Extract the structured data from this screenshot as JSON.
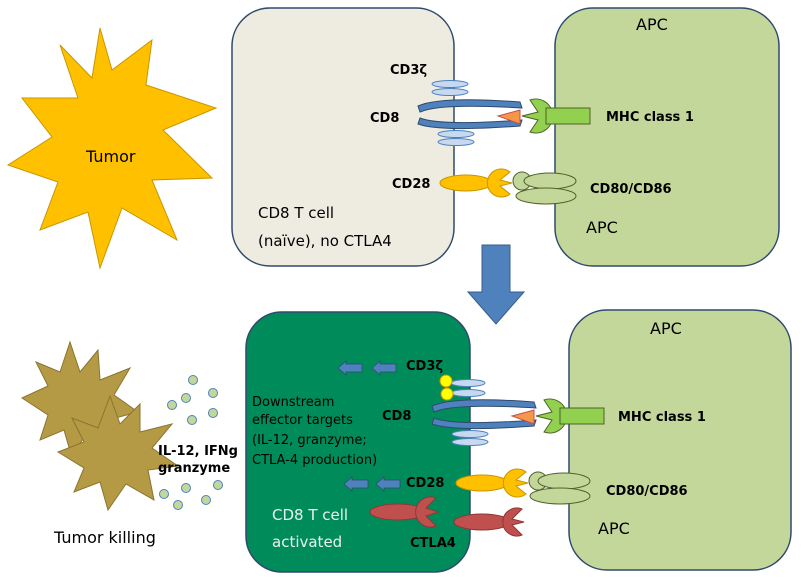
{
  "top": {
    "tumor": "Tumor",
    "apc_title": "APC",
    "apc_label": "APC",
    "cd3z": "CD3ζ",
    "cd8": "CD8",
    "cd28": "CD28",
    "mhc": "MHC class 1",
    "cd80": "CD80/CD86",
    "cell_line1": "CD8 T cell",
    "cell_line2": "(naïve), no CTLA4"
  },
  "bottom": {
    "apc_title": "APC",
    "apc_label": "APC",
    "cd3z": "CD3ζ",
    "cd8": "CD8",
    "cd28": "CD28",
    "ctla4": "CTLA4",
    "mhc": "MHC class 1",
    "cd80": "CD80/CD86",
    "downstream": [
      "Downstream",
      "effector targets",
      "(IL-12, granzyme;",
      "CTLA-4 production)"
    ],
    "cell_line1": "CD8 T cell",
    "cell_line2": "activated",
    "cytokines": [
      "IL-12, IFNg",
      "granzyme"
    ],
    "tumor_killing": "Tumor killing"
  },
  "colors": {
    "tcell_naive": "#eeebe0",
    "tcell_active": "#008c5a",
    "apc": "#c4d79b",
    "tumor": "#ffc000",
    "tumor_dead": "#b49a45",
    "arrow": "#4f81bd",
    "cd28": "#ffc000",
    "ctla4": "#c0504d",
    "mhc": "#92d050"
  }
}
